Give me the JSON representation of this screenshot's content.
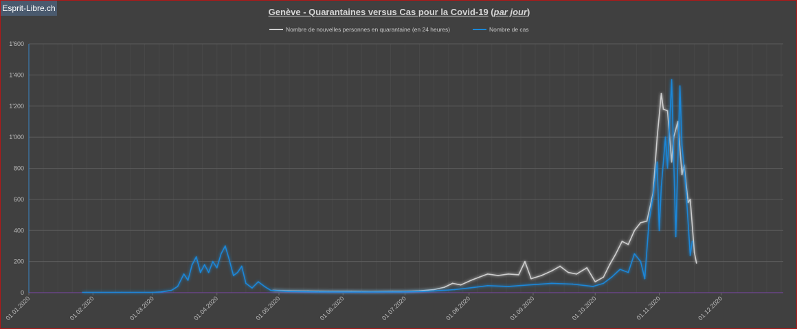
{
  "brand": "Esprit-Libre.ch",
  "title": {
    "main": "Genève - Quarantaines versus Cas pour la Covid-19",
    "qualifier": "par jour",
    "open": "(",
    "close": ")"
  },
  "chart_data": {
    "type": "line",
    "title": "Genève - Quarantaines versus Cas pour la Covid-19 (par jour)",
    "xlabel": "",
    "ylabel": "",
    "ylim": [
      0,
      1600
    ],
    "yticks": [
      0,
      200,
      400,
      600,
      800,
      1000,
      1200,
      1400,
      1600
    ],
    "ytick_labels": [
      "0",
      "200",
      "400",
      "600",
      "800",
      "1'000",
      "1'200",
      "1'400",
      "1'600"
    ],
    "xlim": [
      "2020-01-01",
      "2020-12-31"
    ],
    "xtick_labels": [
      "01.01.2020",
      "01.02.2020",
      "01.03.2020",
      "01.04.2020",
      "01.05.2020",
      "01.06.2020",
      "01.07.2020",
      "01.08.2020",
      "01.09.2020",
      "01.10.2020",
      "01.11.2020",
      "01.12.2020"
    ],
    "xtick_dates": [
      "2020-01-01",
      "2020-02-01",
      "2020-03-01",
      "2020-04-01",
      "2020-05-01",
      "2020-06-01",
      "2020-07-01",
      "2020-08-01",
      "2020-09-01",
      "2020-10-01",
      "2020-11-01",
      "2020-12-01"
    ],
    "grid": true,
    "legend_position": "top-center",
    "colors": {
      "quarantine": "#cfcfcf",
      "cases": "#1a87d8",
      "zero_line": "#7b46a8"
    },
    "series": [
      {
        "name": "Nombre de nouvelles personnes en quarantaine (en 24 heures)",
        "points": [
          [
            "2020-04-28",
            15
          ],
          [
            "2020-05-05",
            12
          ],
          [
            "2020-05-15",
            10
          ],
          [
            "2020-05-25",
            8
          ],
          [
            "2020-06-05",
            8
          ],
          [
            "2020-06-15",
            6
          ],
          [
            "2020-06-25",
            8
          ],
          [
            "2020-07-01",
            8
          ],
          [
            "2020-07-08",
            12
          ],
          [
            "2020-07-15",
            20
          ],
          [
            "2020-07-20",
            35
          ],
          [
            "2020-07-24",
            60
          ],
          [
            "2020-07-28",
            50
          ],
          [
            "2020-08-02",
            80
          ],
          [
            "2020-08-06",
            100
          ],
          [
            "2020-08-10",
            120
          ],
          [
            "2020-08-15",
            110
          ],
          [
            "2020-08-20",
            120
          ],
          [
            "2020-08-25",
            115
          ],
          [
            "2020-08-28",
            200
          ],
          [
            "2020-08-31",
            90
          ],
          [
            "2020-09-05",
            110
          ],
          [
            "2020-09-10",
            140
          ],
          [
            "2020-09-14",
            170
          ],
          [
            "2020-09-18",
            130
          ],
          [
            "2020-09-22",
            120
          ],
          [
            "2020-09-27",
            160
          ],
          [
            "2020-10-01",
            70
          ],
          [
            "2020-10-05",
            100
          ],
          [
            "2020-10-08",
            180
          ],
          [
            "2020-10-11",
            250
          ],
          [
            "2020-10-14",
            330
          ],
          [
            "2020-10-17",
            310
          ],
          [
            "2020-10-20",
            400
          ],
          [
            "2020-10-23",
            450
          ],
          [
            "2020-10-26",
            460
          ],
          [
            "2020-10-29",
            640
          ],
          [
            "2020-10-31",
            1000
          ],
          [
            "2020-11-02",
            1280
          ],
          [
            "2020-11-03",
            1180
          ],
          [
            "2020-11-05",
            1170
          ],
          [
            "2020-11-07",
            840
          ],
          [
            "2020-11-08",
            1000
          ],
          [
            "2020-11-10",
            1100
          ],
          [
            "2020-11-12",
            760
          ],
          [
            "2020-11-13",
            820
          ],
          [
            "2020-11-15",
            580
          ],
          [
            "2020-11-16",
            600
          ],
          [
            "2020-11-18",
            260
          ],
          [
            "2020-11-19",
            190
          ]
        ]
      },
      {
        "name": "Nombre de cas",
        "points": [
          [
            "2020-01-27",
            2
          ],
          [
            "2020-02-15",
            2
          ],
          [
            "2020-03-01",
            2
          ],
          [
            "2020-03-05",
            5
          ],
          [
            "2020-03-10",
            15
          ],
          [
            "2020-03-13",
            40
          ],
          [
            "2020-03-16",
            120
          ],
          [
            "2020-03-18",
            80
          ],
          [
            "2020-03-20",
            180
          ],
          [
            "2020-03-22",
            230
          ],
          [
            "2020-03-24",
            130
          ],
          [
            "2020-03-26",
            180
          ],
          [
            "2020-03-28",
            130
          ],
          [
            "2020-03-30",
            200
          ],
          [
            "2020-04-01",
            160
          ],
          [
            "2020-04-03",
            250
          ],
          [
            "2020-04-05",
            300
          ],
          [
            "2020-04-07",
            210
          ],
          [
            "2020-04-09",
            110
          ],
          [
            "2020-04-11",
            130
          ],
          [
            "2020-04-13",
            170
          ],
          [
            "2020-04-15",
            60
          ],
          [
            "2020-04-18",
            30
          ],
          [
            "2020-04-21",
            70
          ],
          [
            "2020-04-24",
            40
          ],
          [
            "2020-04-27",
            15
          ],
          [
            "2020-05-05",
            8
          ],
          [
            "2020-05-20",
            5
          ],
          [
            "2020-06-10",
            4
          ],
          [
            "2020-06-30",
            5
          ],
          [
            "2020-07-10",
            8
          ],
          [
            "2020-07-20",
            15
          ],
          [
            "2020-07-25",
            20
          ],
          [
            "2020-08-01",
            30
          ],
          [
            "2020-08-10",
            45
          ],
          [
            "2020-08-20",
            40
          ],
          [
            "2020-08-30",
            50
          ],
          [
            "2020-09-10",
            60
          ],
          [
            "2020-09-20",
            55
          ],
          [
            "2020-09-30",
            40
          ],
          [
            "2020-10-05",
            60
          ],
          [
            "2020-10-09",
            100
          ],
          [
            "2020-10-13",
            150
          ],
          [
            "2020-10-17",
            130
          ],
          [
            "2020-10-20",
            250
          ],
          [
            "2020-10-23",
            200
          ],
          [
            "2020-10-25",
            90
          ],
          [
            "2020-10-27",
            450
          ],
          [
            "2020-10-29",
            620
          ],
          [
            "2020-10-31",
            840
          ],
          [
            "2020-11-01",
            400
          ],
          [
            "2020-11-02",
            680
          ],
          [
            "2020-11-04",
            1000
          ],
          [
            "2020-11-05",
            800
          ],
          [
            "2020-11-07",
            1370
          ],
          [
            "2020-11-08",
            850
          ],
          [
            "2020-11-09",
            360
          ],
          [
            "2020-11-11",
            1330
          ],
          [
            "2020-11-12",
            950
          ],
          [
            "2020-11-14",
            650
          ],
          [
            "2020-11-16",
            240
          ],
          [
            "2020-11-17",
            330
          ]
        ]
      }
    ]
  }
}
